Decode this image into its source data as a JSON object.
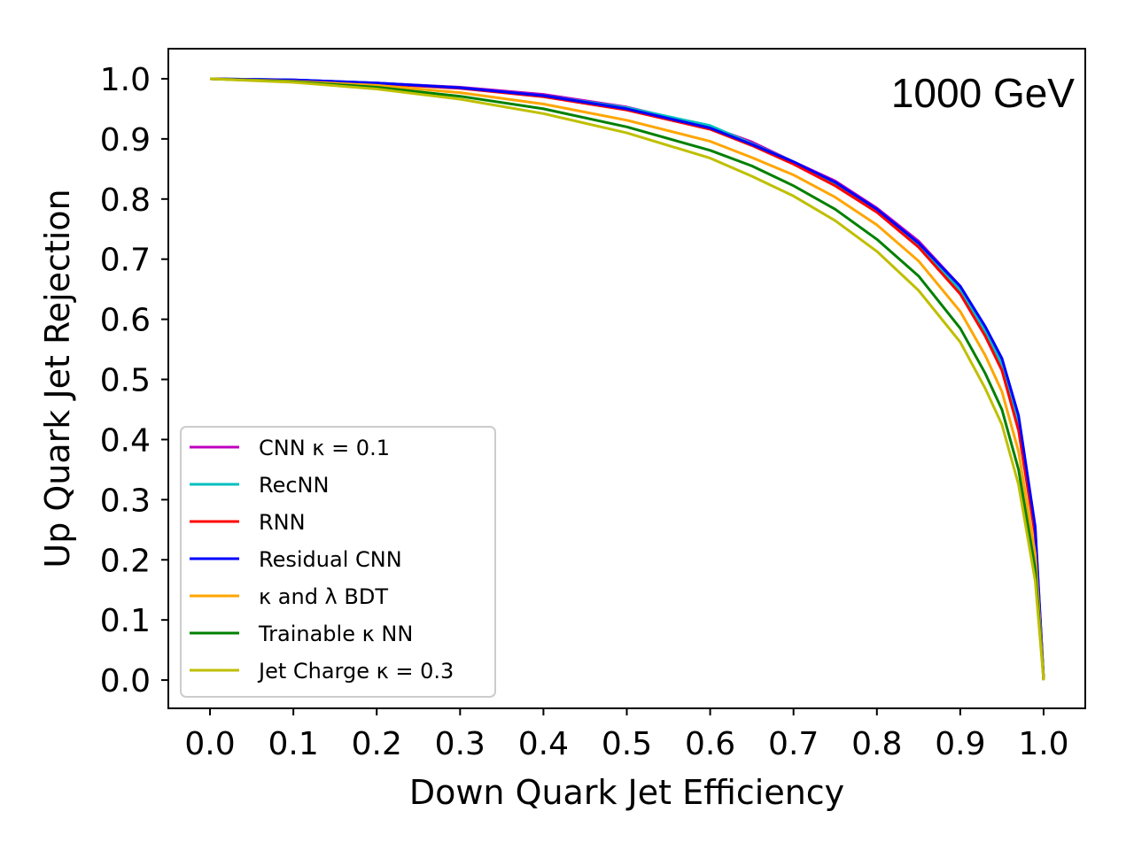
{
  "chart_data": {
    "type": "line",
    "xlabel": "Down Quark Jet Efficiency",
    "ylabel": "Up Quark Jet Rejection",
    "annotation": "1000 GeV",
    "xlim": [
      -0.05,
      1.05
    ],
    "ylim": [
      -0.047,
      1.05
    ],
    "xticks": [
      "0.0",
      "0.1",
      "0.2",
      "0.3",
      "0.4",
      "0.5",
      "0.6",
      "0.7",
      "0.8",
      "0.9",
      "1.0"
    ],
    "yticks": [
      "0.0",
      "0.1",
      "0.2",
      "0.3",
      "0.4",
      "0.5",
      "0.6",
      "0.7",
      "0.8",
      "0.9",
      "1.0"
    ],
    "grid": false,
    "legend_position": "lower-left",
    "series": [
      {
        "name": "CNN κ = 0.1",
        "color": "#bf00bf",
        "x": [
          0,
          0.1,
          0.2,
          0.3,
          0.4,
          0.5,
          0.6,
          0.65,
          0.7,
          0.75,
          0.8,
          0.85,
          0.9,
          0.93,
          0.95,
          0.97,
          0.99,
          1.0
        ],
        "y": [
          1.0,
          0.998,
          0.993,
          0.986,
          0.974,
          0.953,
          0.92,
          0.895,
          0.862,
          0.83,
          0.785,
          0.73,
          0.655,
          0.585,
          0.53,
          0.43,
          0.25,
          0.0
        ]
      },
      {
        "name": "RecNN",
        "color": "#00bfbf",
        "x": [
          0,
          0.1,
          0.2,
          0.3,
          0.4,
          0.5,
          0.6,
          0.65,
          0.7,
          0.75,
          0.8,
          0.85,
          0.9,
          0.93,
          0.95,
          0.97,
          0.99,
          1.0
        ],
        "y": [
          1.0,
          0.998,
          0.993,
          0.985,
          0.972,
          0.952,
          0.922,
          0.892,
          0.862,
          0.824,
          0.78,
          0.723,
          0.648,
          0.58,
          0.525,
          0.425,
          0.245,
          0.0
        ]
      },
      {
        "name": "RNN",
        "color": "#ff0000",
        "x": [
          0,
          0.1,
          0.2,
          0.3,
          0.4,
          0.5,
          0.6,
          0.65,
          0.7,
          0.75,
          0.8,
          0.85,
          0.9,
          0.93,
          0.95,
          0.97,
          0.99,
          1.0
        ],
        "y": [
          1.0,
          0.997,
          0.992,
          0.984,
          0.97,
          0.948,
          0.916,
          0.889,
          0.858,
          0.822,
          0.778,
          0.72,
          0.642,
          0.572,
          0.515,
          0.415,
          0.24,
          0.0
        ]
      },
      {
        "name": "Residual CNN",
        "color": "#0000ff",
        "x": [
          0,
          0.1,
          0.2,
          0.3,
          0.4,
          0.5,
          0.6,
          0.65,
          0.7,
          0.75,
          0.8,
          0.85,
          0.9,
          0.93,
          0.95,
          0.97,
          0.99,
          1.0
        ],
        "y": [
          1.0,
          0.998,
          0.993,
          0.985,
          0.972,
          0.95,
          0.918,
          0.891,
          0.862,
          0.828,
          0.783,
          0.727,
          0.655,
          0.588,
          0.535,
          0.44,
          0.255,
          0.0
        ]
      },
      {
        "name": "κ and λ BDT",
        "color": "#ffa500",
        "x": [
          0,
          0.1,
          0.2,
          0.3,
          0.4,
          0.5,
          0.6,
          0.65,
          0.7,
          0.75,
          0.8,
          0.85,
          0.9,
          0.93,
          0.95,
          0.97,
          0.99,
          1.0
        ],
        "y": [
          1.0,
          0.996,
          0.989,
          0.977,
          0.958,
          0.931,
          0.896,
          0.869,
          0.84,
          0.803,
          0.757,
          0.697,
          0.613,
          0.54,
          0.48,
          0.38,
          0.21,
          0.0
        ]
      },
      {
        "name": "Trainable κ NN",
        "color": "#008000",
        "x": [
          0,
          0.1,
          0.2,
          0.3,
          0.4,
          0.5,
          0.6,
          0.65,
          0.7,
          0.75,
          0.8,
          0.85,
          0.9,
          0.93,
          0.95,
          0.97,
          0.99,
          1.0
        ],
        "y": [
          1.0,
          0.995,
          0.986,
          0.971,
          0.95,
          0.92,
          0.881,
          0.855,
          0.822,
          0.783,
          0.733,
          0.672,
          0.585,
          0.51,
          0.45,
          0.35,
          0.185,
          0.0
        ]
      },
      {
        "name": "Jet Charge κ = 0.3",
        "color": "#bfbf00",
        "x": [
          0,
          0.1,
          0.2,
          0.3,
          0.4,
          0.5,
          0.6,
          0.65,
          0.7,
          0.75,
          0.8,
          0.85,
          0.9,
          0.93,
          0.95,
          0.97,
          0.99,
          1.0
        ],
        "y": [
          1.0,
          0.994,
          0.983,
          0.966,
          0.942,
          0.91,
          0.868,
          0.838,
          0.805,
          0.764,
          0.713,
          0.648,
          0.562,
          0.485,
          0.425,
          0.325,
          0.165,
          0.0
        ]
      }
    ]
  }
}
